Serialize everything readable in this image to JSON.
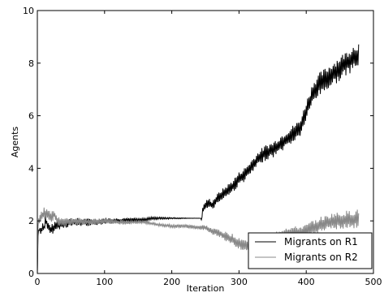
{
  "chart_data": {
    "type": "line",
    "title": "",
    "xlabel": "Iteration",
    "ylabel": "Agents",
    "xlim": [
      0,
      500
    ],
    "ylim": [
      0,
      10
    ],
    "xticks": [
      0,
      100,
      200,
      300,
      400,
      500
    ],
    "yticks": [
      0,
      2,
      4,
      6,
      8,
      10
    ],
    "grid": false,
    "legend_position": "bottom-right",
    "series": [
      {
        "name": "Migrants on R1",
        "color": "#000000",
        "points": [
          [
            0,
            0
          ],
          [
            1,
            1.5
          ],
          [
            3,
            1.7
          ],
          [
            5,
            1.6
          ],
          [
            8,
            1.8
          ],
          [
            10,
            1.7
          ],
          [
            12,
            2.05
          ],
          [
            15,
            1.8
          ],
          [
            20,
            1.65
          ],
          [
            25,
            1.75
          ],
          [
            30,
            1.85
          ],
          [
            40,
            1.9
          ],
          [
            50,
            1.95
          ],
          [
            60,
            1.95
          ],
          [
            80,
            1.95
          ],
          [
            100,
            2.0
          ],
          [
            120,
            2.0
          ],
          [
            140,
            2.05
          ],
          [
            160,
            2.05
          ],
          [
            170,
            2.1
          ],
          [
            180,
            2.1
          ],
          [
            200,
            2.1
          ],
          [
            220,
            2.1
          ],
          [
            243,
            2.1
          ],
          [
            244,
            2.0
          ],
          [
            246,
            2.4
          ],
          [
            250,
            2.6
          ],
          [
            255,
            2.7
          ],
          [
            260,
            2.6
          ],
          [
            265,
            2.75
          ],
          [
            270,
            2.9
          ],
          [
            280,
            3.1
          ],
          [
            290,
            3.3
          ],
          [
            300,
            3.6
          ],
          [
            310,
            3.8
          ],
          [
            320,
            4.1
          ],
          [
            330,
            4.4
          ],
          [
            340,
            4.6
          ],
          [
            350,
            4.7
          ],
          [
            360,
            4.9
          ],
          [
            370,
            5.1
          ],
          [
            380,
            5.3
          ],
          [
            390,
            5.5
          ],
          [
            395,
            5.8
          ],
          [
            400,
            6.2
          ],
          [
            405,
            6.5
          ],
          [
            410,
            6.9
          ],
          [
            420,
            7.2
          ],
          [
            430,
            7.4
          ],
          [
            440,
            7.6
          ],
          [
            450,
            7.8
          ],
          [
            460,
            8.0
          ],
          [
            470,
            8.2
          ],
          [
            478,
            8.3
          ]
        ],
        "noise": [
          [
            0,
            0.1
          ],
          [
            20,
            0.2
          ],
          [
            170,
            0.05
          ],
          [
            243,
            0.0
          ],
          [
            246,
            0.15
          ],
          [
            290,
            0.25
          ],
          [
            390,
            0.35
          ],
          [
            420,
            0.45
          ],
          [
            478,
            0.5
          ]
        ]
      },
      {
        "name": "Migrants on R2",
        "color": "#888888",
        "points": [
          [
            0,
            0
          ],
          [
            1,
            1.9
          ],
          [
            5,
            2.1
          ],
          [
            10,
            2.3
          ],
          [
            15,
            2.25
          ],
          [
            20,
            2.1
          ],
          [
            25,
            2.25
          ],
          [
            30,
            2.0
          ],
          [
            40,
            1.95
          ],
          [
            60,
            2.0
          ],
          [
            80,
            1.95
          ],
          [
            100,
            2.0
          ],
          [
            120,
            1.95
          ],
          [
            140,
            1.95
          ],
          [
            160,
            1.95
          ],
          [
            170,
            1.9
          ],
          [
            180,
            1.85
          ],
          [
            200,
            1.8
          ],
          [
            220,
            1.8
          ],
          [
            240,
            1.75
          ],
          [
            250,
            1.75
          ],
          [
            260,
            1.6
          ],
          [
            270,
            1.55
          ],
          [
            280,
            1.4
          ],
          [
            290,
            1.3
          ],
          [
            300,
            1.15
          ],
          [
            310,
            1.05
          ],
          [
            320,
            1.1
          ],
          [
            330,
            1.2
          ],
          [
            340,
            1.25
          ],
          [
            350,
            1.35
          ],
          [
            360,
            1.45
          ],
          [
            370,
            1.55
          ],
          [
            380,
            1.55
          ],
          [
            390,
            1.55
          ],
          [
            400,
            1.6
          ],
          [
            410,
            1.75
          ],
          [
            420,
            1.85
          ],
          [
            430,
            1.9
          ],
          [
            440,
            2.0
          ],
          [
            450,
            2.0
          ],
          [
            460,
            2.05
          ],
          [
            470,
            2.05
          ],
          [
            478,
            2.1
          ]
        ],
        "noise": [
          [
            0,
            0.2
          ],
          [
            20,
            0.25
          ],
          [
            40,
            0.15
          ],
          [
            170,
            0.05
          ],
          [
            240,
            0.08
          ],
          [
            260,
            0.12
          ],
          [
            300,
            0.25
          ],
          [
            360,
            0.2
          ],
          [
            420,
            0.3
          ],
          [
            478,
            0.35
          ]
        ]
      }
    ]
  }
}
